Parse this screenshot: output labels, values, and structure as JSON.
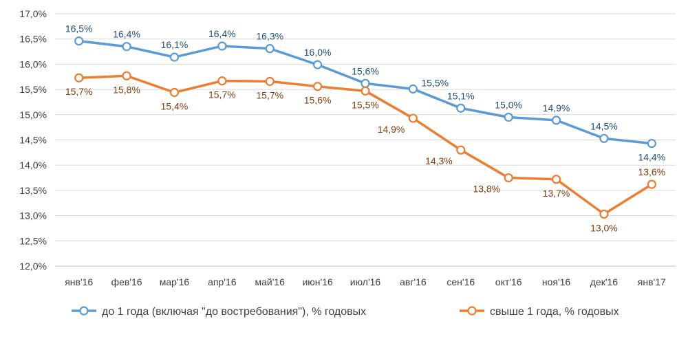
{
  "chart_data": {
    "type": "line",
    "title": "",
    "xlabel": "",
    "ylabel": "",
    "categories": [
      "янв'16",
      "фев'16",
      "мар'16",
      "апр'16",
      "май'16",
      "июн'16",
      "июл'16",
      "авг'16",
      "сен'16",
      "окт'16",
      "ноя'16",
      "дек'16",
      "янв'17"
    ],
    "ylim": [
      12.0,
      17.0
    ],
    "yticks": [
      12.0,
      12.5,
      13.0,
      13.5,
      14.0,
      14.5,
      15.0,
      15.5,
      16.0,
      16.5,
      17.0
    ],
    "ytick_labels": [
      "12,0%",
      "12,5%",
      "13,0%",
      "13,5%",
      "14,0%",
      "14,5%",
      "15,0%",
      "15,5%",
      "16,0%",
      "16,5%",
      "17,0%"
    ],
    "grid": true,
    "legend_position": "bottom",
    "series": [
      {
        "name": "до 1 года (включая \"до востребования\"), % годовых",
        "color": "#5B9BD5",
        "label_color": "#1F4E79",
        "values": [
          16.46,
          16.35,
          16.14,
          16.36,
          16.31,
          15.99,
          15.62,
          15.51,
          15.13,
          14.95,
          14.89,
          14.53,
          14.43
        ],
        "data_labels": [
          "16,5%",
          "16,4%",
          "16,1%",
          "16,4%",
          "16,3%",
          "16,0%",
          "15,6%",
          "15,5%",
          "15,1%",
          "15,0%",
          "14,9%",
          "14,5%",
          "14,4%"
        ],
        "label_side": [
          "above",
          "above",
          "above",
          "above",
          "above",
          "above",
          "above",
          "right",
          "above",
          "above",
          "above",
          "above",
          "below"
        ]
      },
      {
        "name": "свыше 1 года, % годовых",
        "color": "#ED7D31",
        "label_color": "#843C0C",
        "values": [
          15.73,
          15.77,
          15.44,
          15.67,
          15.66,
          15.56,
          15.47,
          14.93,
          14.3,
          13.75,
          13.72,
          13.03,
          13.62
        ],
        "data_labels": [
          "15,7%",
          "15,8%",
          "15,4%",
          "15,7%",
          "15,7%",
          "15,6%",
          "15,5%",
          "14,9%",
          "14,3%",
          "13,8%",
          "13,7%",
          "13,0%",
          "13,6%"
        ],
        "label_side": [
          "below",
          "below",
          "below",
          "below",
          "below",
          "below",
          "below",
          "left",
          "left",
          "left",
          "below",
          "below",
          "above"
        ]
      }
    ]
  }
}
